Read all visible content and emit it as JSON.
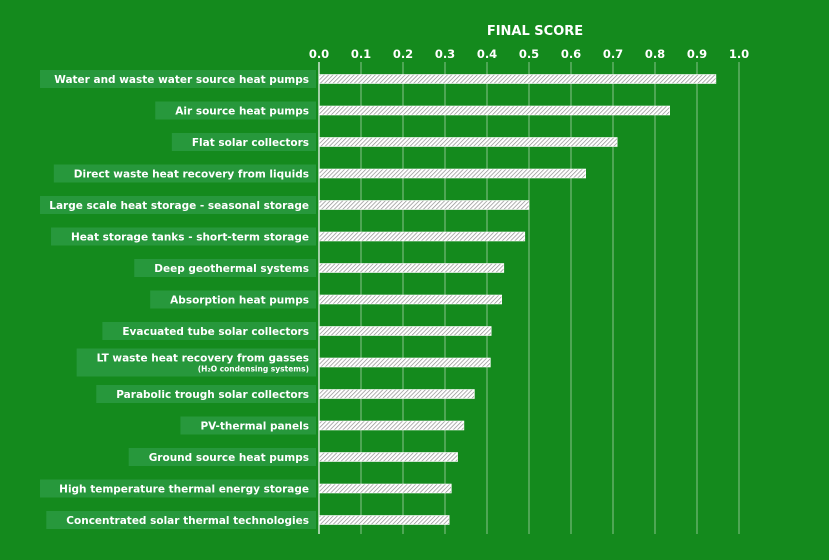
{
  "chart_data": {
    "type": "bar",
    "orientation": "horizontal",
    "title": "FINAL SCORE",
    "xlim": [
      0,
      1.0
    ],
    "ticks": [
      "0.0",
      "0.1",
      "0.2",
      "0.3",
      "0.4",
      "0.5",
      "0.6",
      "0.7",
      "0.8",
      "0.9",
      "1.0"
    ],
    "grid": true,
    "categories": [
      "Water and waste water source heat pumps",
      "Air source heat pumps",
      "Flat solar collectors",
      "Direct waste heat recovery from liquids",
      "Large scale heat storage - seasonal storage",
      "Heat storage tanks - short-term storage",
      "Deep geothermal systems",
      "Absorption heat pumps",
      "Evacuated tube solar collectors",
      "LT waste heat recovery from gasses",
      "Parabolic trough solar collectors",
      "PV-thermal panels",
      "Ground source heat pumps",
      "High temperature thermal energy storage",
      "Concentrated solar thermal technologies"
    ],
    "subcategory_notes": [
      "",
      "",
      "",
      "",
      "",
      "",
      "",
      "",
      "",
      "(H₂O condensing systems)",
      "",
      "",
      "",
      "",
      ""
    ],
    "values": [
      0.945,
      0.835,
      0.71,
      0.635,
      0.5,
      0.49,
      0.44,
      0.435,
      0.41,
      0.408,
      0.37,
      0.345,
      0.33,
      0.315,
      0.31
    ]
  },
  "colors": {
    "background": "#148a1d",
    "label_box": "#2a9a42",
    "bar_fill": "#ffffff",
    "bar_hatch": "#9a9a9a",
    "grid": "#ffffff",
    "text": "#ffffff"
  }
}
